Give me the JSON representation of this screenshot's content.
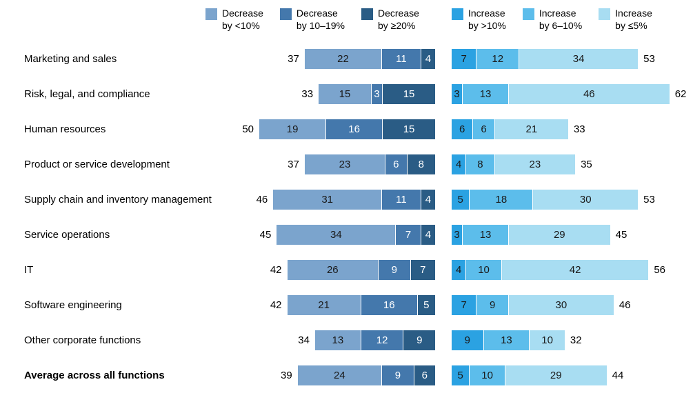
{
  "legend": {
    "decrease": [
      {
        "line1": "Decrease",
        "line2": "by <10%",
        "color": "#7BA4CD"
      },
      {
        "line1": "Decrease",
        "line2": "by 10–19%",
        "color": "#4478AC"
      },
      {
        "line1": "Decrease",
        "line2": "by ≥20%",
        "color": "#2A5C85"
      }
    ],
    "increase": [
      {
        "line1": "Increase",
        "line2": "by >10%",
        "color": "#2BA2E2"
      },
      {
        "line1": "Increase",
        "line2": "by 6–10%",
        "color": "#5CBDEB"
      },
      {
        "line1": "Increase",
        "line2": "by ≤5%",
        "color": "#A8DDF2"
      }
    ]
  },
  "chart_data": {
    "type": "bar",
    "variant": "horizontal-diverging-stacked",
    "decrease_series": [
      "Decrease by <10%",
      "Decrease by 10–19%",
      "Decrease by ≥20%"
    ],
    "increase_series": [
      "Increase by >10%",
      "Increase by 6–10%",
      "Increase by ≤5%"
    ],
    "legend_position": "top",
    "rows": [
      {
        "label": "Marketing and sales",
        "bold": false,
        "decrease_total": 37,
        "decrease": [
          22,
          11,
          4
        ],
        "increase": [
          7,
          12,
          34
        ],
        "increase_total": 53
      },
      {
        "label": "Risk, legal, and compliance",
        "bold": false,
        "decrease_total": 33,
        "decrease": [
          15,
          3,
          15
        ],
        "increase": [
          3,
          13,
          46
        ],
        "increase_total": 62
      },
      {
        "label": "Human resources",
        "bold": false,
        "decrease_total": 50,
        "decrease": [
          19,
          16,
          15
        ],
        "increase": [
          6,
          6,
          21
        ],
        "increase_total": 33
      },
      {
        "label": "Product or service development",
        "bold": false,
        "decrease_total": 37,
        "decrease": [
          23,
          6,
          8
        ],
        "increase": [
          4,
          8,
          23
        ],
        "increase_total": 35
      },
      {
        "label": "Supply chain and inventory management",
        "bold": false,
        "decrease_total": 46,
        "decrease": [
          31,
          11,
          4
        ],
        "increase": [
          5,
          18,
          30
        ],
        "increase_total": 53
      },
      {
        "label": "Service operations",
        "bold": false,
        "decrease_total": 45,
        "decrease": [
          34,
          7,
          4
        ],
        "increase": [
          3,
          13,
          29
        ],
        "increase_total": 45
      },
      {
        "label": "IT",
        "bold": false,
        "decrease_total": 42,
        "decrease": [
          26,
          9,
          7
        ],
        "increase": [
          4,
          10,
          42
        ],
        "increase_total": 56
      },
      {
        "label": "Software engineering",
        "bold": false,
        "decrease_total": 42,
        "decrease": [
          21,
          16,
          5
        ],
        "increase": [
          7,
          9,
          30
        ],
        "increase_total": 46
      },
      {
        "label": "Other corporate functions",
        "bold": false,
        "decrease_total": 34,
        "decrease": [
          13,
          12,
          9
        ],
        "increase": [
          9,
          13,
          10
        ],
        "increase_total": 32
      },
      {
        "label": "Average across all functions",
        "bold": true,
        "decrease_total": 39,
        "decrease": [
          24,
          9,
          6
        ],
        "increase": [
          5,
          10,
          29
        ],
        "increase_total": 44
      }
    ]
  }
}
